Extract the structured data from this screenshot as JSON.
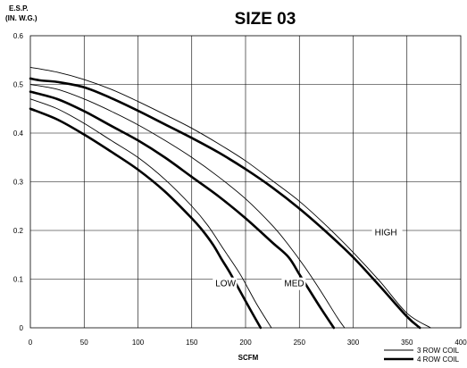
{
  "chart_data": {
    "type": "line",
    "title": "SIZE 03",
    "ylabel_line1": "E.S.P.",
    "ylabel_line2": "(IN. W.G.)",
    "xlabel": "SCFM",
    "xlim": [
      0,
      400
    ],
    "ylim": [
      0,
      0.6
    ],
    "xticks": [
      0,
      50,
      100,
      150,
      200,
      250,
      300,
      350,
      400
    ],
    "yticks": [
      0,
      0.1,
      0.2,
      0.3,
      0.4,
      0.5,
      0.6
    ],
    "xtick_labels": [
      "0",
      "50",
      "100",
      "150",
      "200",
      "250",
      "300",
      "350",
      "400"
    ],
    "ytick_labels": [
      "0",
      "0.1",
      "0.2",
      "0.3",
      "0.4",
      "0.5",
      "0.6"
    ],
    "grid": true,
    "legend_position": "bottom-right",
    "legend": [
      {
        "label": "3 ROW COIL",
        "style": "thin"
      },
      {
        "label": "4 ROW COIL",
        "style": "thick"
      }
    ],
    "annotations": [
      {
        "text": "HIGH",
        "x": 320,
        "y": 0.19
      },
      {
        "text": "MED",
        "x": 236,
        "y": 0.085
      },
      {
        "text": "LOW",
        "x": 172,
        "y": 0.085
      }
    ],
    "series": [
      {
        "speed": "HIGH",
        "coil": "3 ROW COIL",
        "style": "thin",
        "x": [
          0,
          25,
          50,
          75,
          100,
          125,
          150,
          175,
          200,
          225,
          250,
          275,
          300,
          325,
          350,
          372
        ],
        "y": [
          0.535,
          0.525,
          0.51,
          0.49,
          0.465,
          0.438,
          0.41,
          0.378,
          0.343,
          0.302,
          0.26,
          0.21,
          0.155,
          0.095,
          0.03,
          0
        ]
      },
      {
        "speed": "HIGH",
        "coil": "4 ROW COIL",
        "style": "thick",
        "x": [
          0,
          10,
          25,
          50,
          75,
          100,
          125,
          150,
          175,
          200,
          225,
          250,
          275,
          300,
          325,
          350,
          362
        ],
        "y": [
          0.512,
          0.508,
          0.505,
          0.494,
          0.472,
          0.446,
          0.418,
          0.39,
          0.36,
          0.326,
          0.288,
          0.245,
          0.197,
          0.145,
          0.085,
          0.023,
          0
        ]
      },
      {
        "speed": "MED",
        "coil": "3 ROW COIL",
        "style": "thin",
        "x": [
          0,
          25,
          50,
          75,
          100,
          125,
          150,
          175,
          200,
          225,
          240,
          255,
          270,
          285,
          292
        ],
        "y": [
          0.5,
          0.49,
          0.47,
          0.445,
          0.417,
          0.385,
          0.35,
          0.31,
          0.265,
          0.21,
          0.17,
          0.125,
          0.075,
          0.022,
          0
        ]
      },
      {
        "speed": "MED",
        "coil": "4 ROW COIL",
        "style": "thick",
        "x": [
          0,
          25,
          50,
          75,
          100,
          125,
          150,
          175,
          200,
          225,
          240,
          250,
          260,
          270,
          282
        ],
        "y": [
          0.485,
          0.47,
          0.445,
          0.415,
          0.385,
          0.35,
          0.31,
          0.27,
          0.225,
          0.175,
          0.145,
          0.11,
          0.075,
          0.04,
          0
        ]
      },
      {
        "speed": "LOW",
        "coil": "3 ROW COIL",
        "style": "thin",
        "x": [
          0,
          25,
          50,
          75,
          100,
          125,
          150,
          165,
          180,
          195,
          210,
          224
        ],
        "y": [
          0.47,
          0.45,
          0.42,
          0.385,
          0.35,
          0.305,
          0.25,
          0.21,
          0.16,
          0.11,
          0.05,
          0
        ]
      },
      {
        "speed": "LOW",
        "coil": "4 ROW COIL",
        "style": "thick",
        "x": [
          0,
          25,
          50,
          75,
          100,
          125,
          150,
          160,
          170,
          178,
          185,
          195,
          205,
          214
        ],
        "y": [
          0.45,
          0.428,
          0.397,
          0.362,
          0.325,
          0.28,
          0.225,
          0.2,
          0.17,
          0.14,
          0.115,
          0.075,
          0.035,
          0
        ]
      }
    ]
  }
}
